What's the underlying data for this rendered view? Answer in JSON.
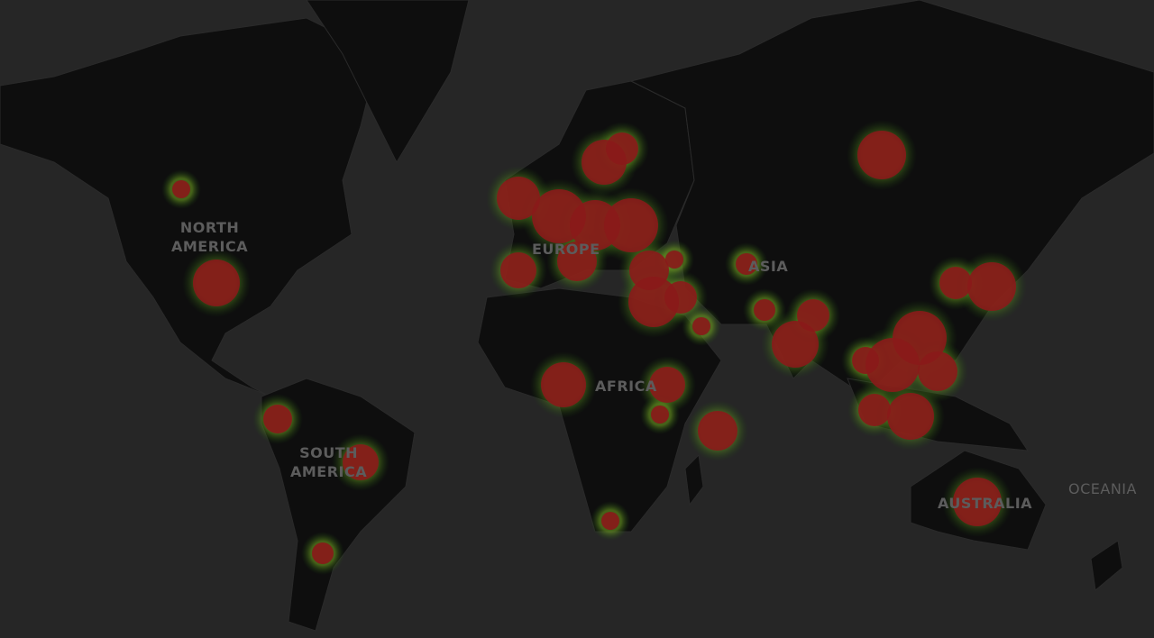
{
  "map": {
    "colors": {
      "ocean": "#262626",
      "land": "#0e0e0e",
      "border": "#2a2a2a",
      "hotspot": "#8a1a1a",
      "halo": "#4a8a1a",
      "label": "#5c5c5c"
    },
    "labels": {
      "north_america": "NORTH\nAMERICA",
      "south_america": "SOUTH\nAMERICA",
      "europe": "EUROPE",
      "africa": "AFRICA",
      "asia": "ASIA",
      "australia": "AUSTRALIA",
      "oceania": "OCEANIA"
    }
  }
}
